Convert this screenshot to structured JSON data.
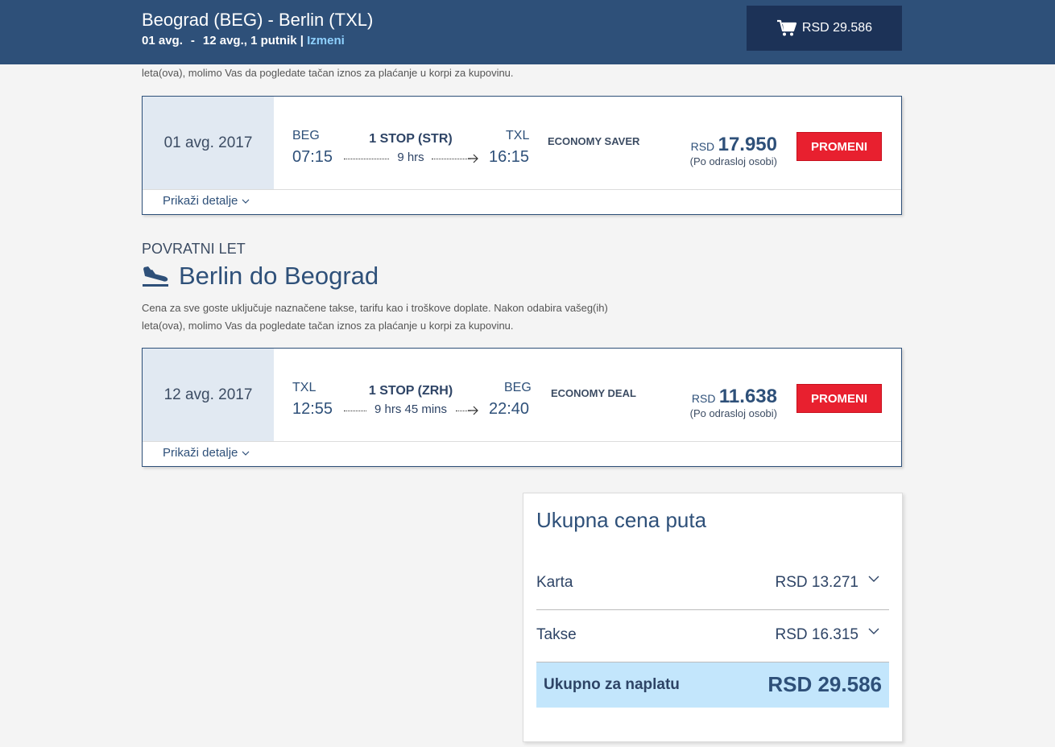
{
  "header": {
    "route": "Beograd (BEG) - Berlin (TXL)",
    "date_out": "01 avg.",
    "date_sep": "-",
    "date_back_passengers": "12 avg., 1 putnik |",
    "edit_link": "Izmeni",
    "cart_total": "RSD 29.586",
    "cart_icon": "shopping-cart-icon"
  },
  "outbound": {
    "note_tail": "leta(ova), molimo Vas da pogledate tačan iznos za plaćanje u korpi za kupovinu.",
    "date": "01 avg. 2017",
    "from_code": "BEG",
    "from_time": "07:15",
    "stop": "1 STOP (STR)",
    "duration": "9 hrs",
    "to_code": "TXL",
    "to_time": "16:15",
    "fare": "ECONOMY SAVER",
    "currency": "RSD",
    "price": "17.950",
    "per_person": "(Po odrasloj osobi)",
    "change_button": "PROMENI",
    "details_link": "Prikaži detalje"
  },
  "return": {
    "section_label": "POVRATNI LET",
    "title": "Berlin do Beograd",
    "title_icon": "plane-landing-icon",
    "note_line1": "Cena za sve goste uključuje naznačene takse, tarifu kao i troškove doplate. Nakon odabira vašeg(ih)",
    "note_line2": "leta(ova), molimo Vas da pogledate tačan iznos za plaćanje u korpi za kupovinu.",
    "date": "12 avg. 2017",
    "from_code": "TXL",
    "from_time": "12:55",
    "stop": "1 STOP (ZRH)",
    "duration": "9 hrs 45 mins",
    "to_code": "BEG",
    "to_time": "22:40",
    "fare": "ECONOMY DEAL",
    "currency": "RSD",
    "price": "11.638",
    "per_person": "(Po odrasloj osobi)",
    "change_button": "PROMENI",
    "details_link": "Prikaži detalje"
  },
  "summary": {
    "title": "Ukupna cena puta",
    "rows": [
      {
        "label": "Karta",
        "value": "RSD 13.271"
      },
      {
        "label": "Takse",
        "value": "RSD 16.315"
      }
    ],
    "total_label": "Ukupno za naplatu",
    "total_value": "RSD 29.586"
  },
  "colors": {
    "header_bg": "#2e5079",
    "cart_bg": "#1c3257",
    "accent_red": "#e8202f",
    "date_panel_bg": "#e1e9f2",
    "total_highlight": "#c3e6fc"
  }
}
